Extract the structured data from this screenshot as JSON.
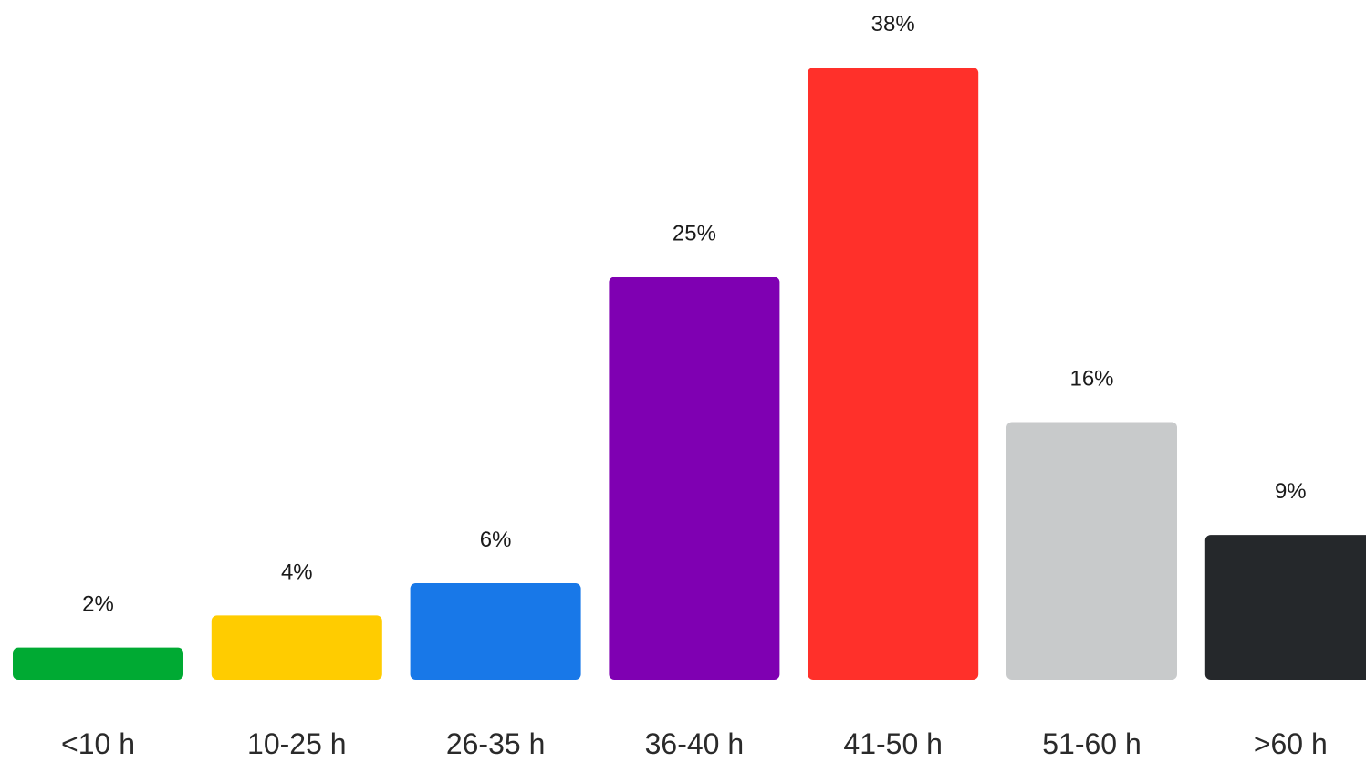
{
  "chart_data": {
    "type": "bar",
    "categories": [
      "<10 h",
      "10-25 h",
      "26-35 h",
      "36-40 h",
      "41-50 h",
      "51-60 h",
      ">60 h"
    ],
    "values": [
      2,
      4,
      6,
      25,
      38,
      16,
      9
    ],
    "value_labels": [
      "2%",
      "4%",
      "6%",
      "25%",
      "38%",
      "16%",
      "9%"
    ],
    "colors": [
      "#00aa33",
      "#ffcc00",
      "#1878e8",
      "#7f00b2",
      "#ff302a",
      "#c8cacb",
      "#25282b"
    ],
    "ylim": [
      0,
      38
    ],
    "grid": false,
    "legend": false
  }
}
